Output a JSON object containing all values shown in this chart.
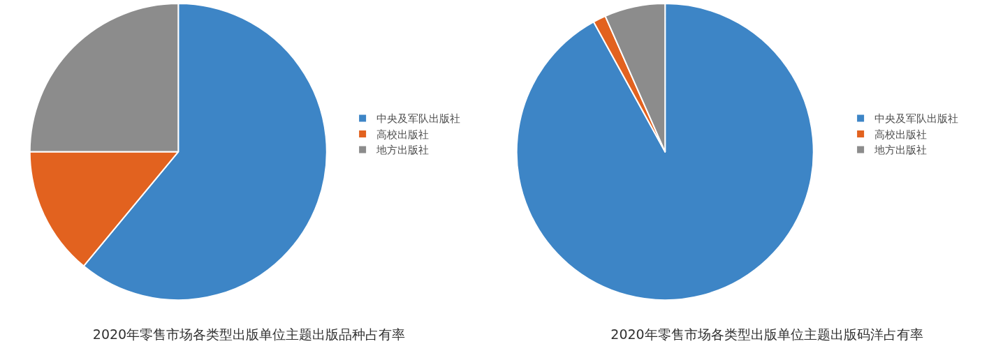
{
  "chart_data": [
    {
      "type": "pie",
      "title": "2020年零售市场各类型出版单位主题出版品种占有率",
      "categories": [
        "中央及军队出版社",
        "高校出版社",
        "地方出版社"
      ],
      "values": [
        61,
        14,
        25
      ],
      "colors": [
        "#3d85c6",
        "#e2621f",
        "#8c8c8c"
      ],
      "legend": "right"
    },
    {
      "type": "pie",
      "title": "2020年零售市场各类型出版单位主题出版码洋占有率",
      "categories": [
        "中央及军队出版社",
        "高校出版社",
        "地方出版社"
      ],
      "values": [
        92,
        1.4,
        6.6
      ],
      "colors": [
        "#3d85c6",
        "#e2621f",
        "#8c8c8c"
      ],
      "legend": "right"
    }
  ]
}
